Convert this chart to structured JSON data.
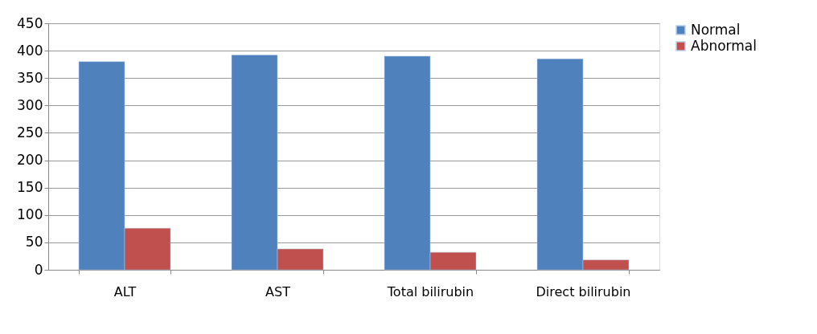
{
  "chart_data": {
    "type": "bar",
    "categories": [
      "ALT",
      "AST",
      "Total bilirubin",
      "Direct bilirubin"
    ],
    "series": [
      {
        "name": "Normal",
        "color": "#4f81bd",
        "values": [
          380,
          392,
          390,
          385
        ]
      },
      {
        "name": "Abnormal",
        "color": "#c0504d",
        "values": [
          76,
          38,
          32,
          18
        ]
      }
    ],
    "ylim": [
      0,
      450
    ],
    "yticks": [
      0,
      50,
      100,
      150,
      200,
      250,
      300,
      350,
      400,
      450
    ],
    "grid": "y",
    "legend": "right"
  }
}
